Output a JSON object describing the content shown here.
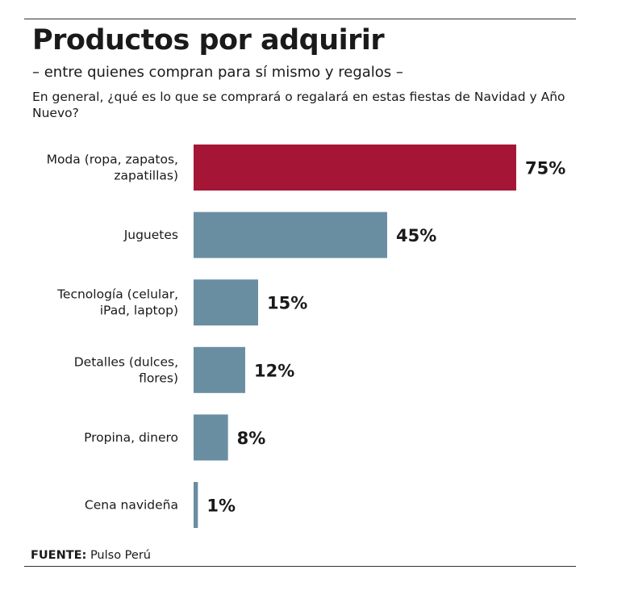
{
  "header": {
    "title": "Productos por adquirir",
    "subtitle": "– entre quienes compran para sí mismo y regalos –",
    "question": "En general, ¿qué es lo que se comprará o regalará en estas fiestas de Navidad y Año Nuevo?"
  },
  "footer": {
    "source_label": "FUENTE:",
    "source_value": "Pulso Perú"
  },
  "chart_data": {
    "type": "bar",
    "orientation": "horizontal",
    "categories": [
      [
        "Moda (ropa, zapatos,",
        "zapatillas)"
      ],
      [
        "Juguetes"
      ],
      [
        "Tecnología (celular,",
        "iPad, laptop)"
      ],
      [
        "Detalles (dulces,",
        "flores)"
      ],
      [
        "Propina, dinero"
      ],
      [
        "Cena navideña"
      ]
    ],
    "values": [
      75,
      45,
      15,
      12,
      8,
      1
    ],
    "value_labels": [
      "75%",
      "45%",
      "15%",
      "12%",
      "8%",
      "1%"
    ],
    "unit": "%",
    "xlim": [
      0,
      100
    ],
    "grid": false,
    "legend": "none",
    "colors": {
      "highlight": "#a51636",
      "default": "#6a8ea1"
    },
    "highlight_index": 0
  }
}
